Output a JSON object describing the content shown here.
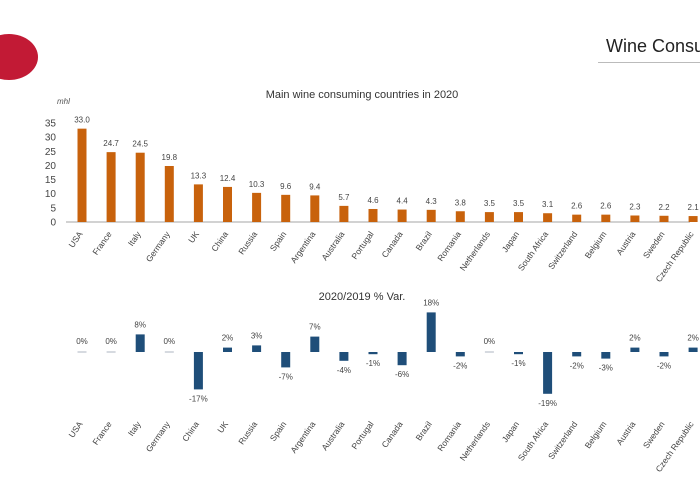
{
  "header": {
    "page_title": "Wine Consump"
  },
  "chart_data": [
    {
      "type": "bar",
      "title": "Main wine consuming countries in 2020",
      "ylabel": "mhl",
      "xlabel": "",
      "ylim": [
        0,
        35
      ],
      "yticks": [
        "0",
        "5",
        "10",
        "15",
        "20",
        "25",
        "30",
        "35"
      ],
      "grid": false,
      "color": "#c8620c",
      "categories": [
        "USA",
        "France",
        "Italy",
        "Germany",
        "UK",
        "China",
        "Russia",
        "Spain",
        "Argentina",
        "Australia",
        "Portugal",
        "Canada",
        "Brazil",
        "Romania",
        "Netherlands",
        "Japan",
        "South Africa",
        "Switzerland",
        "Belgium",
        "Austria",
        "Sweden",
        "Czech Republic"
      ],
      "values": [
        33.0,
        24.7,
        24.5,
        19.8,
        13.3,
        12.4,
        10.3,
        9.6,
        9.4,
        5.7,
        4.6,
        4.4,
        4.3,
        3.8,
        3.5,
        3.5,
        3.1,
        2.6,
        2.6,
        2.3,
        2.2,
        2.1
      ],
      "value_labels": [
        "33.0",
        "24.7",
        "24.5",
        "19.8",
        "13.3",
        "12.4",
        "10.3",
        "9.6",
        "9.4",
        "5.7",
        "4.6",
        "4.4",
        "4.3",
        "3.8",
        "3.5",
        "3.5",
        "3.1",
        "2.6",
        "2.6",
        "2.3",
        "2.2",
        "2.1"
      ]
    },
    {
      "type": "bar",
      "title": "2020/2019 % Var.",
      "xlabel": "",
      "ylabel": "",
      "grid": false,
      "color": "#1f4e79",
      "categories": [
        "USA",
        "France",
        "Italy",
        "Germany",
        "China",
        "UK",
        "Russia",
        "Spain",
        "Argentina",
        "Australia",
        "Portugal",
        "Canada",
        "Brazil",
        "Romania",
        "Netherlands",
        "Japan",
        "South Africa",
        "Switzerland",
        "Belgium",
        "Austria",
        "Sweden",
        "Czech Republic"
      ],
      "values": [
        0,
        0,
        8,
        0,
        -17,
        2,
        3,
        -7,
        7,
        -4,
        -1,
        -6,
        18,
        -2,
        0,
        -1,
        -19,
        -2,
        -3,
        2,
        -2,
        2
      ],
      "value_labels": [
        "0%",
        "0%",
        "8%",
        "0%",
        "-17%",
        "2%",
        "3%",
        "-7%",
        "7%",
        "-4%",
        "-1%",
        "-6%",
        "18%",
        "-2%",
        "0%",
        "-1%",
        "-19%",
        "-2%",
        "-3%",
        "2%",
        "-2%",
        "2%"
      ]
    }
  ]
}
